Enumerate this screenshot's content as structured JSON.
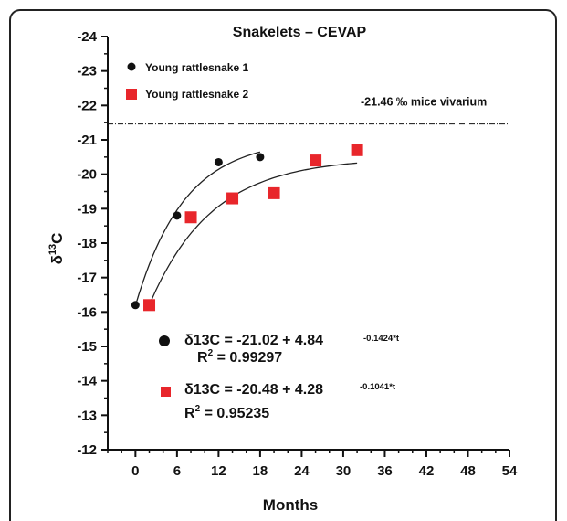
{
  "colors": {
    "series1": "#111111",
    "series2": "#e8262b",
    "axis": "#111111"
  },
  "chart_data": {
    "type": "scatter",
    "title": "Snakelets – CEVAP",
    "xlabel": "Months",
    "ylabel_main": "δ",
    "ylabel_sup": "13",
    "ylabel_tail": "C",
    "xlim": [
      -4,
      54
    ],
    "ylim": [
      -24,
      -12
    ],
    "y_inverted": true,
    "xticks": [
      0,
      6,
      12,
      18,
      24,
      30,
      36,
      42,
      48,
      54
    ],
    "yticks": [
      -24,
      -23,
      -22,
      -21,
      -20,
      -19,
      -18,
      -17,
      -16,
      -15,
      -14,
      -13,
      -12
    ],
    "grid": false,
    "legend_position": "top-left",
    "series": [
      {
        "name": "Young rattlesnake 1",
        "marker": "circle",
        "color": "#111111",
        "x": [
          0,
          6,
          12,
          18
        ],
        "y": [
          -16.2,
          -18.8,
          -20.35,
          -20.5
        ],
        "fit": {
          "a": -21.02,
          "b": 4.84,
          "k": 0.1424,
          "t_max": 18
        }
      },
      {
        "name": "Young rattlesnake 2",
        "marker": "square",
        "color": "#e8262b",
        "x": [
          2,
          8,
          14,
          20,
          26,
          32
        ],
        "y": [
          -16.2,
          -18.75,
          -19.3,
          -19.45,
          -20.4,
          -20.7
        ],
        "fit": {
          "a": -20.48,
          "b": 4.28,
          "k": 0.1041,
          "t_max": 32
        }
      }
    ],
    "reference_line": {
      "y": -21.46,
      "label": "-21.46 ‰  mice vivarium"
    },
    "equations": [
      {
        "main": "δ13C = -21.02 + 4.84",
        "exponent": "-0.1424*t",
        "r2_label": "R",
        "r2_sup": "2",
        "r2_value": " = 0.99297"
      },
      {
        "main": "δ13C = -20.48 + 4.28",
        "exponent": "-0.1041*t",
        "r2_label": "R",
        "r2_sup": "2",
        "r2_value": " = 0.95235"
      }
    ]
  }
}
